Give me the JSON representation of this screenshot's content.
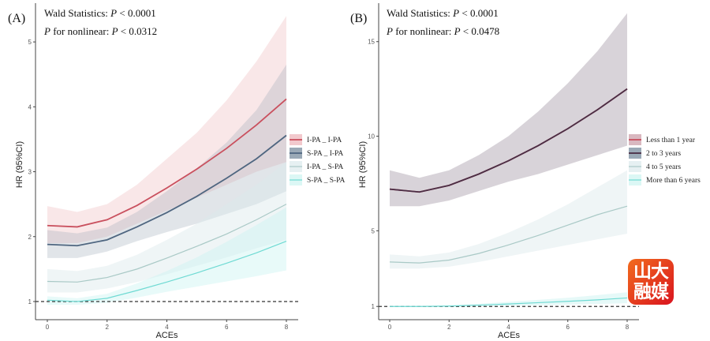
{
  "chart_data": [
    {
      "type": "line",
      "panel_label": "(A)",
      "annotations": {
        "wald_prefix": "Wald Statistics: ",
        "wald_p": "P",
        "wald_value": " < 0.0001",
        "nonlinear_p1": "P",
        "nonlinear_mid": " for nonlinear: ",
        "nonlinear_p2": "P",
        "nonlinear_value": " < 0.0312"
      },
      "xlabel": "ACEs",
      "ylabel": "HR (95%CI)",
      "xlim": [
        -0.4,
        8.4
      ],
      "ylim": [
        0.72,
        5.5
      ],
      "xticks": [
        0,
        2,
        4,
        6,
        8
      ],
      "yticks": [
        1,
        2,
        3,
        4,
        5
      ],
      "reference_line": 1,
      "legend_position": "right",
      "x": [
        0,
        1,
        2,
        3,
        4,
        5,
        6,
        7,
        8
      ],
      "series": [
        {
          "name": "I-PA _ I-PA",
          "color": "#c9505e",
          "band": "#f2c9cd",
          "band_opacity": 0.45,
          "values": [
            2.17,
            2.15,
            2.26,
            2.48,
            2.75,
            3.04,
            3.36,
            3.72,
            4.12
          ],
          "lower": [
            1.9,
            1.9,
            2.0,
            2.2,
            2.4,
            2.6,
            2.8,
            3.0,
            3.15
          ],
          "upper": [
            2.47,
            2.38,
            2.5,
            2.8,
            3.2,
            3.6,
            4.1,
            4.7,
            5.4
          ]
        },
        {
          "name": "S-PA _ I-PA",
          "color": "#4f6680",
          "band": "#9aa9b6",
          "band_opacity": 0.3,
          "values": [
            1.88,
            1.86,
            1.95,
            2.15,
            2.37,
            2.62,
            2.9,
            3.2,
            3.56
          ],
          "lower": [
            1.67,
            1.67,
            1.77,
            1.93,
            2.07,
            2.2,
            2.35,
            2.5,
            2.7
          ],
          "upper": [
            2.1,
            2.05,
            2.14,
            2.38,
            2.7,
            3.05,
            3.45,
            3.95,
            4.65
          ]
        },
        {
          "name": "I-PA _ S-PA",
          "color": "#a9c9c6",
          "band": "#dbe9ec",
          "band_opacity": 0.45,
          "values": [
            1.31,
            1.3,
            1.37,
            1.5,
            1.67,
            1.85,
            2.04,
            2.26,
            2.5
          ],
          "lower": [
            1.14,
            1.14,
            1.2,
            1.3,
            1.42,
            1.55,
            1.68,
            1.82,
            1.95
          ],
          "upper": [
            1.5,
            1.47,
            1.55,
            1.72,
            1.95,
            2.2,
            2.5,
            2.8,
            3.15
          ]
        },
        {
          "name": "S-PA _ S-PA",
          "color": "#6fdad3",
          "band": "#cdf3f1",
          "band_opacity": 0.45,
          "values": [
            1.02,
            1.0,
            1.05,
            1.17,
            1.3,
            1.44,
            1.59,
            1.75,
            1.93
          ],
          "lower": [
            0.95,
            0.95,
            0.98,
            1.06,
            1.15,
            1.23,
            1.31,
            1.39,
            1.48
          ],
          "upper": [
            1.08,
            1.05,
            1.12,
            1.28,
            1.47,
            1.68,
            1.92,
            2.18,
            2.45
          ]
        }
      ]
    },
    {
      "type": "line",
      "panel_label": "(B)",
      "annotations": {
        "wald_prefix": "Wald Statistics: ",
        "wald_p": "P",
        "wald_value": " < 0.0001",
        "nonlinear_p1": "P",
        "nonlinear_mid": " for nonlinear: ",
        "nonlinear_p2": "P",
        "nonlinear_value": " < 0.0478"
      },
      "xlabel": "ACEs",
      "ylabel": "HR (95%CI)",
      "xlim": [
        -0.4,
        8.4
      ],
      "ylim": [
        0.3,
        16.7
      ],
      "xticks": [
        0,
        2,
        4,
        6,
        8
      ],
      "yticks": [
        1,
        5,
        10,
        15
      ],
      "reference_line": 1,
      "legend_position": "right",
      "x": [
        0,
        1,
        2,
        3,
        4,
        5,
        6,
        7,
        8
      ],
      "series": [
        {
          "name": "Less than 1 year",
          "color": "#c9505e",
          "band": "#d9b8c0",
          "band_opacity": 0.35,
          "values": [
            7.2,
            7.05,
            7.4,
            8.0,
            8.7,
            9.5,
            10.4,
            11.4,
            12.5
          ],
          "lower": [
            6.3,
            6.3,
            6.6,
            7.1,
            7.6,
            8.0,
            8.5,
            9.0,
            9.5
          ],
          "upper": [
            8.2,
            7.8,
            8.2,
            9.0,
            10.0,
            11.3,
            12.8,
            14.5,
            16.5
          ]
        },
        {
          "name": "2 to 3 years",
          "color": "#4a2e45",
          "band": "#9aa9b6",
          "band_opacity": 0.3,
          "values": [
            7.2,
            7.05,
            7.4,
            8.0,
            8.7,
            9.5,
            10.4,
            11.4,
            12.5
          ],
          "lower": [
            6.3,
            6.3,
            6.6,
            7.1,
            7.6,
            8.0,
            8.5,
            9.0,
            9.5
          ],
          "upper": [
            8.2,
            7.8,
            8.2,
            9.0,
            10.0,
            11.3,
            12.8,
            14.5,
            16.5
          ]
        },
        {
          "name": "4 to 5 years",
          "color": "#a9c9c6",
          "band": "#dbe9ec",
          "band_opacity": 0.45,
          "values": [
            3.35,
            3.3,
            3.45,
            3.8,
            4.25,
            4.75,
            5.3,
            5.85,
            6.3
          ],
          "lower": [
            3.0,
            3.0,
            3.1,
            3.35,
            3.65,
            3.95,
            4.25,
            4.55,
            4.85
          ],
          "upper": [
            3.75,
            3.65,
            3.85,
            4.3,
            4.9,
            5.6,
            6.4,
            7.3,
            8.2
          ]
        },
        {
          "name": "More than 6 years",
          "color": "#6fdad3",
          "band": "#cdf3f1",
          "band_opacity": 0.5,
          "values": [
            1.0,
            1.0,
            1.02,
            1.07,
            1.13,
            1.2,
            1.27,
            1.35,
            1.45
          ],
          "lower": [
            0.97,
            0.97,
            0.98,
            1.0,
            1.03,
            1.06,
            1.1,
            1.13,
            1.17
          ],
          "upper": [
            1.03,
            1.03,
            1.06,
            1.14,
            1.24,
            1.35,
            1.46,
            1.6,
            1.75
          ]
        }
      ]
    }
  ],
  "watermark": {
    "text": "山大融媒",
    "color": "#e8462a"
  }
}
